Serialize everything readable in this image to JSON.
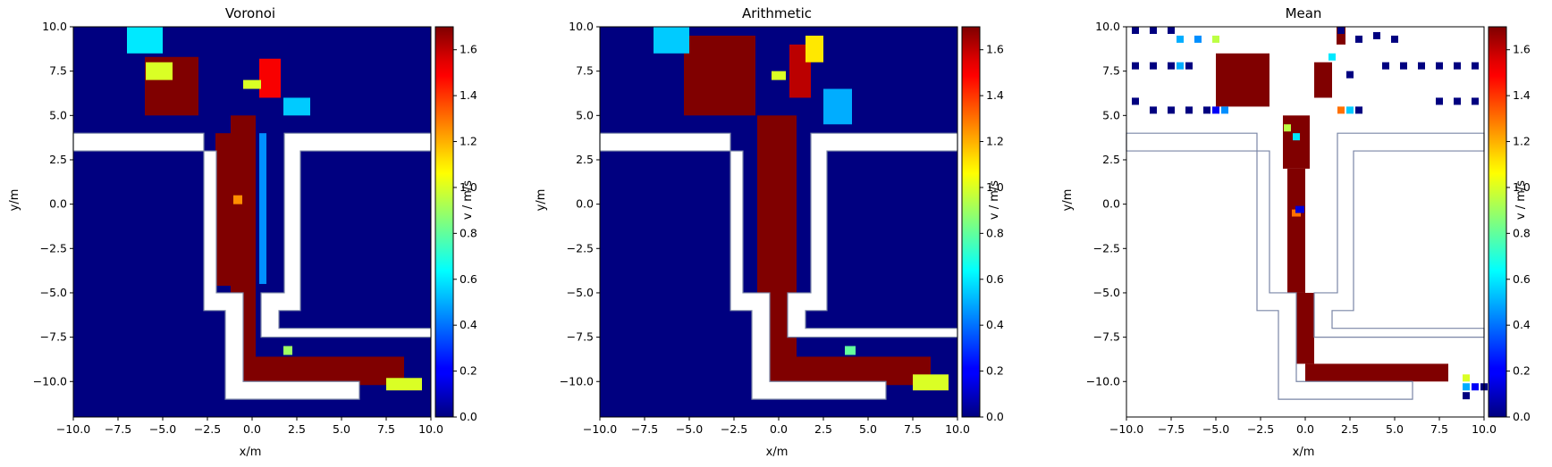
{
  "chart_data": [
    {
      "type": "heatmap",
      "title": "Voronoi",
      "xlabel": "x/m",
      "ylabel": "y/m",
      "xlim": [
        -10,
        10
      ],
      "ylim": [
        -12,
        10
      ],
      "xticks": [
        "−10.0",
        "−7.5",
        "−5.0",
        "−2.5",
        "0.0",
        "2.5",
        "5.0",
        "7.5",
        "10.0"
      ],
      "yticks": [
        "10.0",
        "7.5",
        "5.0",
        "2.5",
        "0.0",
        "−2.5",
        "−5.0",
        "−7.5",
        "−10.0"
      ],
      "background_value": 0.0,
      "cells": [
        {
          "x": -0.5,
          "y_min": -9.5,
          "y_max": 5.0,
          "w": 1.4,
          "value": 1.7
        },
        {
          "x": -1.6,
          "y_min": -4.6,
          "y_max": 4.0,
          "w": 0.9,
          "value": 1.7
        },
        {
          "x": 4.0,
          "y_min": -10.2,
          "y_max": -8.6,
          "w": 9.0,
          "value": 1.7
        },
        {
          "x": -4.5,
          "y_min": 5.0,
          "y_max": 8.3,
          "w": 3.0,
          "value": 1.7
        },
        {
          "x": 1.0,
          "y_min": 6.0,
          "y_max": 8.2,
          "w": 1.2,
          "value": 1.5
        },
        {
          "x": -5.2,
          "y_min": 7.0,
          "y_max": 8.0,
          "w": 1.5,
          "value": 1.0
        },
        {
          "x": 0.0,
          "y_min": 6.5,
          "y_max": 7.0,
          "w": 1.0,
          "value": 1.0
        },
        {
          "x": 2.5,
          "y_min": 5.0,
          "y_max": 6.0,
          "w": 1.5,
          "value": 0.55
        },
        {
          "x": -6.0,
          "y_min": 8.5,
          "y_max": 10.0,
          "w": 2.0,
          "value": 0.6
        },
        {
          "x": -0.8,
          "y_min": 0.0,
          "y_max": 0.5,
          "w": 0.5,
          "value": 1.25
        },
        {
          "x": 8.5,
          "y_min": -10.5,
          "y_max": -9.8,
          "w": 2.0,
          "value": 1.0
        },
        {
          "x": 2.0,
          "y_min": -8.5,
          "y_max": -8.0,
          "w": 0.5,
          "value": 0.9
        },
        {
          "x": 0.6,
          "y_min": -4.5,
          "y_max": 4.0,
          "w": 0.4,
          "value": 0.45
        }
      ]
    },
    {
      "type": "heatmap",
      "title": "Arithmetic",
      "xlabel": "x/m",
      "ylabel": "y/m",
      "xlim": [
        -10,
        10
      ],
      "ylim": [
        -12,
        10
      ],
      "xticks": [
        "−10.0",
        "−7.5",
        "−5.0",
        "−2.5",
        "0.0",
        "2.5",
        "5.0",
        "7.5",
        "10.0"
      ],
      "yticks": [
        "10.0",
        "7.5",
        "5.0",
        "2.5",
        "0.0",
        "−2.5",
        "−5.0",
        "−7.5",
        "−10.0"
      ],
      "background_value": 0.0,
      "cells": [
        {
          "x": -0.1,
          "y_min": -9.5,
          "y_max": 5.0,
          "w": 2.2,
          "value": 1.7
        },
        {
          "x": 4.0,
          "y_min": -10.2,
          "y_max": -8.6,
          "w": 9.0,
          "value": 1.7
        },
        {
          "x": -3.3,
          "y_min": 5.0,
          "y_max": 9.5,
          "w": 4.0,
          "value": 1.7
        },
        {
          "x": 1.2,
          "y_min": 6.0,
          "y_max": 9.0,
          "w": 1.2,
          "value": 1.6
        },
        {
          "x": 3.3,
          "y_min": 4.5,
          "y_max": 6.5,
          "w": 1.6,
          "value": 0.5
        },
        {
          "x": -6.0,
          "y_min": 8.5,
          "y_max": 10.0,
          "w": 2.0,
          "value": 0.55
        },
        {
          "x": 2.0,
          "y_min": 8.0,
          "y_max": 9.5,
          "w": 1.0,
          "value": 1.1
        },
        {
          "x": 0.0,
          "y_min": 7.0,
          "y_max": 7.5,
          "w": 0.8,
          "value": 1.0
        },
        {
          "x": 8.5,
          "y_min": -10.5,
          "y_max": -9.6,
          "w": 2.0,
          "value": 1.0
        },
        {
          "x": 4.0,
          "y_min": -8.5,
          "y_max": -8.0,
          "w": 0.6,
          "value": 0.8
        }
      ]
    },
    {
      "type": "heatmap",
      "title": "Mean",
      "xlabel": "x/m",
      "ylabel": "y/m",
      "xlim": [
        -10,
        10
      ],
      "ylim": [
        -12,
        10
      ],
      "xticks": [
        "−10.0",
        "−7.5",
        "−5.0",
        "−2.5",
        "0.0",
        "2.5",
        "5.0",
        "7.5",
        "10.0"
      ],
      "yticks": [
        "10.0",
        "7.5",
        "5.0",
        "2.5",
        "0.0",
        "−2.5",
        "−5.0",
        "−7.5",
        "−10.0"
      ],
      "background_value": null,
      "cells": [
        {
          "x": -0.5,
          "y_min": 2.0,
          "y_max": 5.0,
          "w": 1.5,
          "value": 1.7
        },
        {
          "x": -0.5,
          "y_min": -5.0,
          "y_max": 2.0,
          "w": 1.0,
          "value": 1.7
        },
        {
          "x": 0.0,
          "y_min": -9.0,
          "y_max": -5.0,
          "w": 1.0,
          "value": 1.7
        },
        {
          "x": 4.0,
          "y_min": -10.0,
          "y_max": -9.0,
          "w": 8.0,
          "value": 1.7
        },
        {
          "x": -3.5,
          "y_min": 5.5,
          "y_max": 8.5,
          "w": 3.0,
          "value": 1.7
        },
        {
          "x": 1.0,
          "y_min": 6.0,
          "y_max": 8.0,
          "w": 1.0,
          "value": 1.7
        },
        {
          "x": 2.0,
          "y_min": 9.0,
          "y_max": 10.0,
          "w": 0.5,
          "value": 1.7
        },
        {
          "x": -0.5,
          "y_min": -0.7,
          "y_max": -0.3,
          "w": 0.5,
          "value": 1.3
        },
        {
          "x": -0.3,
          "y_min": -0.5,
          "y_max": -0.1,
          "w": 0.5,
          "value": 0.15
        }
      ],
      "dots": [
        {
          "x": -9.5,
          "y": 9.8,
          "value": 0.0
        },
        {
          "x": -8.5,
          "y": 9.8,
          "value": 0.0
        },
        {
          "x": -7.5,
          "y": 9.8,
          "value": 0.0
        },
        {
          "x": 2.0,
          "y": 9.8,
          "value": 0.0
        },
        {
          "x": 3.0,
          "y": 9.3,
          "value": 0.0
        },
        {
          "x": 4.0,
          "y": 9.5,
          "value": 0.0
        },
        {
          "x": 5.0,
          "y": 9.3,
          "value": 0.0
        },
        {
          "x": -7.0,
          "y": 9.3,
          "value": 0.5
        },
        {
          "x": -6.0,
          "y": 9.3,
          "value": 0.45
        },
        {
          "x": -5.0,
          "y": 9.3,
          "value": 0.95
        },
        {
          "x": -9.5,
          "y": 7.8,
          "value": 0.0
        },
        {
          "x": -8.5,
          "y": 7.8,
          "value": 0.0
        },
        {
          "x": -7.5,
          "y": 7.8,
          "value": 0.0
        },
        {
          "x": -7.0,
          "y": 7.8,
          "value": 0.5
        },
        {
          "x": -6.5,
          "y": 7.8,
          "value": 0.0
        },
        {
          "x": 1.5,
          "y": 8.3,
          "value": 0.6
        },
        {
          "x": 2.5,
          "y": 7.3,
          "value": 0.0
        },
        {
          "x": 4.5,
          "y": 7.8,
          "value": 0.0
        },
        {
          "x": 5.5,
          "y": 7.8,
          "value": 0.0
        },
        {
          "x": 6.5,
          "y": 7.8,
          "value": 0.0
        },
        {
          "x": 7.5,
          "y": 7.8,
          "value": 0.0
        },
        {
          "x": 8.5,
          "y": 7.8,
          "value": 0.0
        },
        {
          "x": 9.5,
          "y": 7.8,
          "value": 0.0
        },
        {
          "x": -9.5,
          "y": 5.8,
          "value": 0.0
        },
        {
          "x": -8.5,
          "y": 5.3,
          "value": 0.0
        },
        {
          "x": -7.5,
          "y": 5.3,
          "value": 0.0
        },
        {
          "x": -6.5,
          "y": 5.3,
          "value": 0.0
        },
        {
          "x": -5.5,
          "y": 5.3,
          "value": 0.0
        },
        {
          "x": -5.0,
          "y": 5.3,
          "value": 0.2
        },
        {
          "x": -4.5,
          "y": 5.3,
          "value": 0.45
        },
        {
          "x": 2.0,
          "y": 5.3,
          "value": 1.3
        },
        {
          "x": 2.5,
          "y": 5.3,
          "value": 0.55
        },
        {
          "x": 3.0,
          "y": 5.3,
          "value": 0.0
        },
        {
          "x": 7.5,
          "y": 5.8,
          "value": 0.0
        },
        {
          "x": 8.5,
          "y": 5.8,
          "value": 0.0
        },
        {
          "x": 9.5,
          "y": 5.8,
          "value": 0.0
        },
        {
          "x": -1.0,
          "y": 4.3,
          "value": 0.95
        },
        {
          "x": -0.5,
          "y": 3.8,
          "value": 0.6
        },
        {
          "x": 9.0,
          "y": -9.8,
          "value": 1.0
        },
        {
          "x": 9.0,
          "y": -10.3,
          "value": 0.5
        },
        {
          "x": 9.5,
          "y": -10.3,
          "value": 0.2
        },
        {
          "x": 10.0,
          "y": -10.3,
          "value": 0.0
        },
        {
          "x": 9.0,
          "y": -10.8,
          "value": 0.0
        }
      ]
    }
  ],
  "colorbar": {
    "label": "v / m/s",
    "min": 0.0,
    "max": 1.7,
    "ticks": [
      "0.0",
      "0.2",
      "0.4",
      "0.6",
      "0.8",
      "1.0",
      "1.2",
      "1.4",
      "1.6"
    ],
    "colormap": "jet"
  },
  "geometry": {
    "walls_polygon": [
      [
        -10,
        4.0
      ],
      [
        -2.7,
        4.0
      ],
      [
        -2.7,
        -6.0
      ],
      [
        -1.5,
        -6.0
      ],
      [
        -1.5,
        -11.0
      ],
      [
        6.0,
        -11.0
      ],
      [
        6.0,
        -10.0
      ],
      [
        -0.5,
        -10.0
      ],
      [
        -0.5,
        -5.0
      ],
      [
        -2.0,
        -5.0
      ],
      [
        -2.0,
        3.0
      ],
      [
        -10,
        3.0
      ]
    ],
    "walls_polygon_right": [
      [
        10,
        4.0
      ],
      [
        1.8,
        4.0
      ],
      [
        1.8,
        -5.0
      ],
      [
        0.5,
        -5.0
      ],
      [
        0.5,
        -7.5
      ],
      [
        10,
        -7.5
      ],
      [
        10,
        -7.0
      ],
      [
        1.5,
        -7.0
      ],
      [
        1.5,
        -6.0
      ],
      [
        2.7,
        -6.0
      ],
      [
        2.7,
        3.0
      ],
      [
        10,
        3.0
      ]
    ],
    "wall_color": "#7a86a6"
  }
}
